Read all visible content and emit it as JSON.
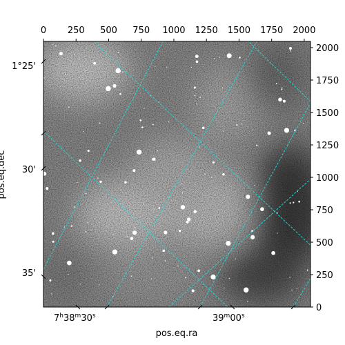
{
  "chart_data": {
    "type": "image",
    "colormap": "grayscale",
    "grid_color": "#20d8d8",
    "top_axis": {
      "range": [
        0,
        2048
      ],
      "ticks": [
        0,
        250,
        500,
        750,
        1000,
        1250,
        1500,
        1750,
        2000
      ],
      "labels": [
        "0",
        "250",
        "500",
        "750",
        "1000",
        "1250",
        "1500",
        "1750",
        "2000"
      ]
    },
    "right_axis": {
      "range": [
        0,
        2048
      ],
      "ticks": [
        0,
        250,
        500,
        750,
        1000,
        1250,
        1500,
        1750,
        2000
      ],
      "labels": [
        "0",
        "250",
        "500",
        "750",
        "1000",
        "1250",
        "1500",
        "1750",
        "2000"
      ]
    },
    "bottom_axis": {
      "label": "pos.eq.ra",
      "ticks": [
        {
          "pixel": 270,
          "label_main": "7",
          "label_h": "h",
          "label_min": "38",
          "label_m": "m",
          "label_sec": "30",
          "label_s": "s"
        },
        {
          "pixel": 1450,
          "label_main": "39",
          "label_m": "m",
          "label_sec": "00",
          "label_s": "s"
        }
      ]
    },
    "left_axis": {
      "label": "pos.eq.dec",
      "ticks": [
        {
          "label": "1°25'"
        },
        {
          "label": "30'"
        },
        {
          "label": "35'"
        }
      ]
    }
  }
}
